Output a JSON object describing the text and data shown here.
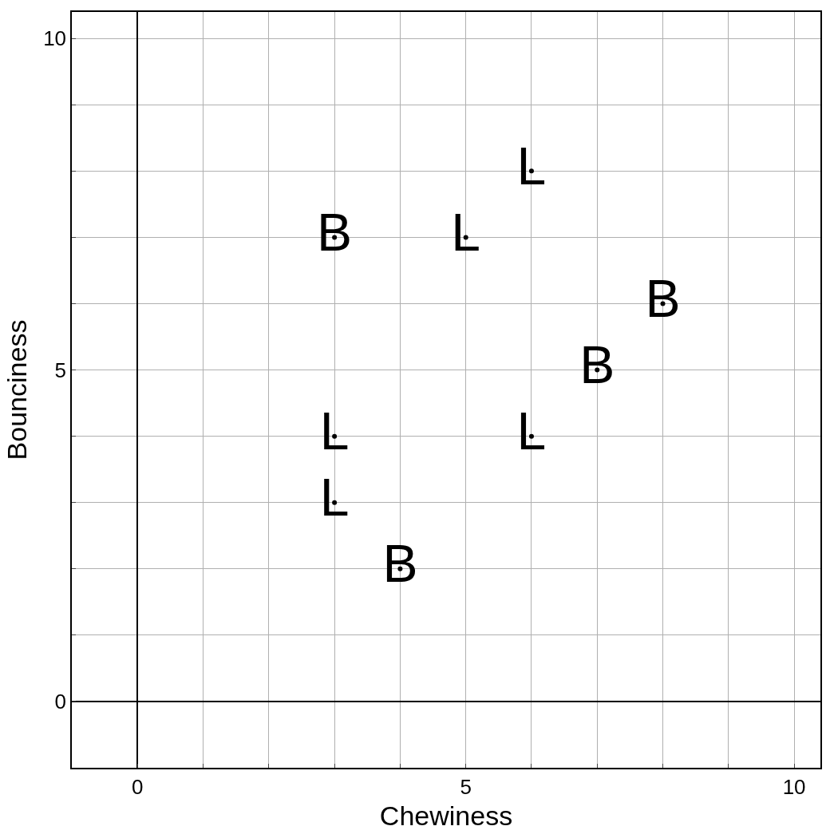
{
  "chart_data": {
    "type": "scatter",
    "xlabel": "Chewiness",
    "ylabel": "Bounciness",
    "series": [
      {
        "color": "#000000",
        "x": [
          3,
          8,
          7,
          4
        ],
        "values": [
          7,
          6,
          5,
          2
        ],
        "value_labels": [
          "B",
          "B",
          "B",
          "B"
        ]
      },
      {
        "color": "#000000",
        "x": [
          6,
          5,
          3,
          3,
          6
        ],
        "values": [
          8,
          7,
          4,
          3,
          4
        ],
        "value_labels": [
          "L",
          "L",
          "L",
          "L",
          "L"
        ]
      }
    ],
    "xlim": [
      -1,
      10.4
    ],
    "ylim": [
      -1,
      10.4
    ],
    "xticks": [
      0,
      {
        "value": 1,
        "label": null
      },
      {
        "value": 2,
        "label": null
      },
      {
        "value": 3,
        "label": null
      },
      {
        "value": 4,
        "label": null
      },
      5,
      {
        "value": 6,
        "label": null
      },
      {
        "value": 7,
        "label": null
      },
      {
        "value": 8,
        "label": null
      },
      {
        "value": 9,
        "label": null
      },
      10
    ],
    "yticks": [
      0,
      {
        "value": 1,
        "label": null
      },
      {
        "value": 2,
        "label": null
      },
      {
        "value": 3,
        "label": null
      },
      {
        "value": 4,
        "label": null
      },
      5,
      {
        "value": 6,
        "label": null
      },
      {
        "value": 7,
        "label": null
      },
      {
        "value": 8,
        "label": null
      },
      {
        "value": 9,
        "label": null
      },
      10
    ],
    "grid": true,
    "marker": "none"
  }
}
